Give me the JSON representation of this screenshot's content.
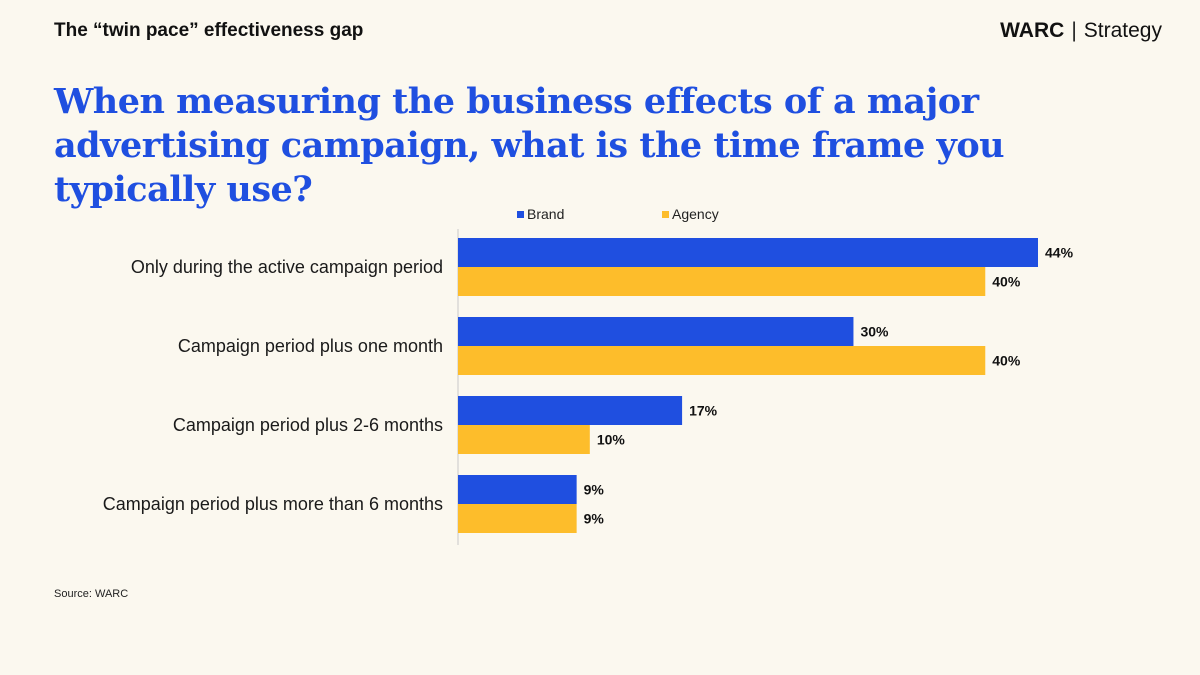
{
  "header": {
    "kicker": "The “twin pace” effectiveness gap",
    "brand": "WARC",
    "separator": "|",
    "section": "Strategy"
  },
  "headline": "When measuring the business effects of a major advertising campaign, what is the time frame you typically use?",
  "source": "Source: WARC",
  "colors": {
    "brand_series": "#1f4fe0",
    "agency_series": "#fdbd2b",
    "headline": "#1f4fe0"
  },
  "chart_data": {
    "type": "bar",
    "orientation": "horizontal",
    "title": "When measuring the business effects of a major advertising campaign, what is the time frame you typically use?",
    "categories": [
      "Only during the active campaign period",
      "Campaign period plus one month",
      "Campaign period plus 2-6 months",
      "Campaign period plus more than 6 months"
    ],
    "series": [
      {
        "name": "Brand",
        "values": [
          44,
          30,
          17,
          9
        ],
        "color": "#1f4fe0"
      },
      {
        "name": "Agency",
        "values": [
          40,
          40,
          10,
          9
        ],
        "color": "#fdbd2b"
      }
    ],
    "value_suffix": "%",
    "xlim": [
      0,
      44
    ],
    "legend_position": "top",
    "grid": false,
    "xlabel": "",
    "ylabel": ""
  }
}
